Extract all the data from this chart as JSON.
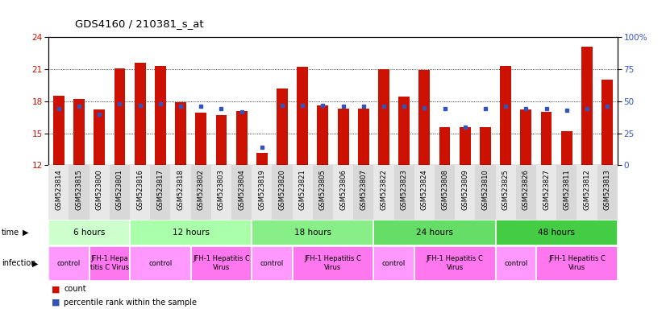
{
  "title": "GDS4160 / 210381_s_at",
  "samples": [
    "GSM523814",
    "GSM523815",
    "GSM523800",
    "GSM523801",
    "GSM523816",
    "GSM523817",
    "GSM523818",
    "GSM523802",
    "GSM523803",
    "GSM523804",
    "GSM523819",
    "GSM523820",
    "GSM523821",
    "GSM523805",
    "GSM523806",
    "GSM523807",
    "GSM523822",
    "GSM523823",
    "GSM523824",
    "GSM523808",
    "GSM523809",
    "GSM523810",
    "GSM523825",
    "GSM523826",
    "GSM523827",
    "GSM523811",
    "GSM523812",
    "GSM523813"
  ],
  "count_values": [
    18.5,
    18.2,
    17.2,
    21.1,
    21.6,
    21.3,
    17.9,
    16.9,
    16.7,
    17.1,
    13.2,
    19.2,
    21.2,
    17.6,
    17.3,
    17.3,
    21.0,
    18.4,
    20.9,
    15.6,
    15.6,
    15.6,
    21.3,
    17.2,
    17.0,
    15.2,
    23.1,
    20.0
  ],
  "percentile_values": [
    44,
    46,
    40,
    48,
    47,
    48,
    46,
    46,
    44,
    42,
    14,
    47,
    47,
    47,
    46,
    46,
    46,
    46,
    45,
    44,
    30,
    44,
    46,
    44,
    44,
    43,
    44,
    46
  ],
  "ylim_left": [
    12,
    24
  ],
  "ylim_right": [
    0,
    100
  ],
  "yticks_left": [
    12,
    15,
    18,
    21,
    24
  ],
  "yticks_right": [
    0,
    25,
    50,
    75,
    100
  ],
  "bar_color": "#CC1100",
  "marker_color": "#3355BB",
  "time_groups": [
    {
      "label": "6 hours",
      "start": 0,
      "end": 4,
      "color": "#CCFFCC"
    },
    {
      "label": "12 hours",
      "start": 4,
      "end": 10,
      "color": "#AAFFAA"
    },
    {
      "label": "18 hours",
      "start": 10,
      "end": 16,
      "color": "#88EE88"
    },
    {
      "label": "24 hours",
      "start": 16,
      "end": 22,
      "color": "#66DD66"
    },
    {
      "label": "48 hours",
      "start": 22,
      "end": 28,
      "color": "#44CC44"
    }
  ],
  "infection_groups": [
    {
      "label": "control",
      "start": 0,
      "end": 2,
      "color": "#FF99FF"
    },
    {
      "label": "JFH-1 Hepa\ntitis C Virus",
      "start": 2,
      "end": 4,
      "color": "#FF77EE"
    },
    {
      "label": "control",
      "start": 4,
      "end": 7,
      "color": "#FF99FF"
    },
    {
      "label": "JFH-1 Hepatitis C\nVirus",
      "start": 7,
      "end": 10,
      "color": "#FF77EE"
    },
    {
      "label": "control",
      "start": 10,
      "end": 12,
      "color": "#FF99FF"
    },
    {
      "label": "JFH-1 Hepatitis C\nVirus",
      "start": 12,
      "end": 16,
      "color": "#FF77EE"
    },
    {
      "label": "control",
      "start": 16,
      "end": 18,
      "color": "#FF99FF"
    },
    {
      "label": "JFH-1 Hepatitis C\nVirus",
      "start": 18,
      "end": 22,
      "color": "#FF77EE"
    },
    {
      "label": "control",
      "start": 22,
      "end": 24,
      "color": "#FF99FF"
    },
    {
      "label": "JFH-1 Hepatitis C\nVirus",
      "start": 24,
      "end": 28,
      "color": "#FF77EE"
    }
  ],
  "background_color": "#FFFFFF",
  "plot_bg_color": "#FFFFFF",
  "fig_width": 8.26,
  "fig_height": 3.84
}
